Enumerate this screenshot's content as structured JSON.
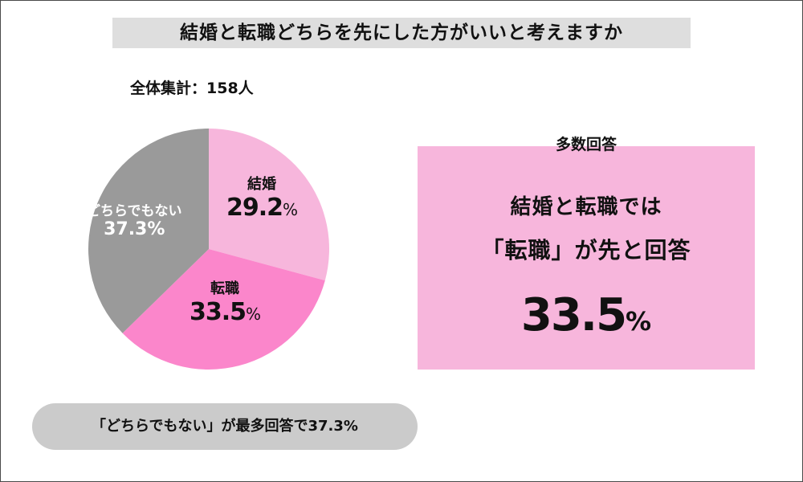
{
  "header": {
    "title": "結婚と転職どちらを先にした方がいいと考えますか",
    "total": "全体集計：158人"
  },
  "chart_data": {
    "type": "pie",
    "title": "結婚と転職どちらを先にした方がいいと考えますか",
    "categories": [
      "結婚",
      "転職",
      "どちらでもない"
    ],
    "values": [
      29.2,
      33.5,
      37.3
    ],
    "value_labels": [
      "29.2",
      "33.5",
      "37.3%"
    ],
    "percent_sign": "%",
    "colors": [
      "#f7b6dc",
      "#fb86cb",
      "#9a9a9a"
    ],
    "start_angle_deg": 0,
    "direction": "clockwise"
  },
  "summary_box": {
    "caption": "多数回答",
    "line1": "結婚と転職では",
    "line2": "「転職」が先と回答",
    "value": "33.5",
    "unit": "%",
    "color": "#f7b6dc"
  },
  "footer": {
    "pill_text": "「どちらでもない」が最多回答で37.3%"
  }
}
